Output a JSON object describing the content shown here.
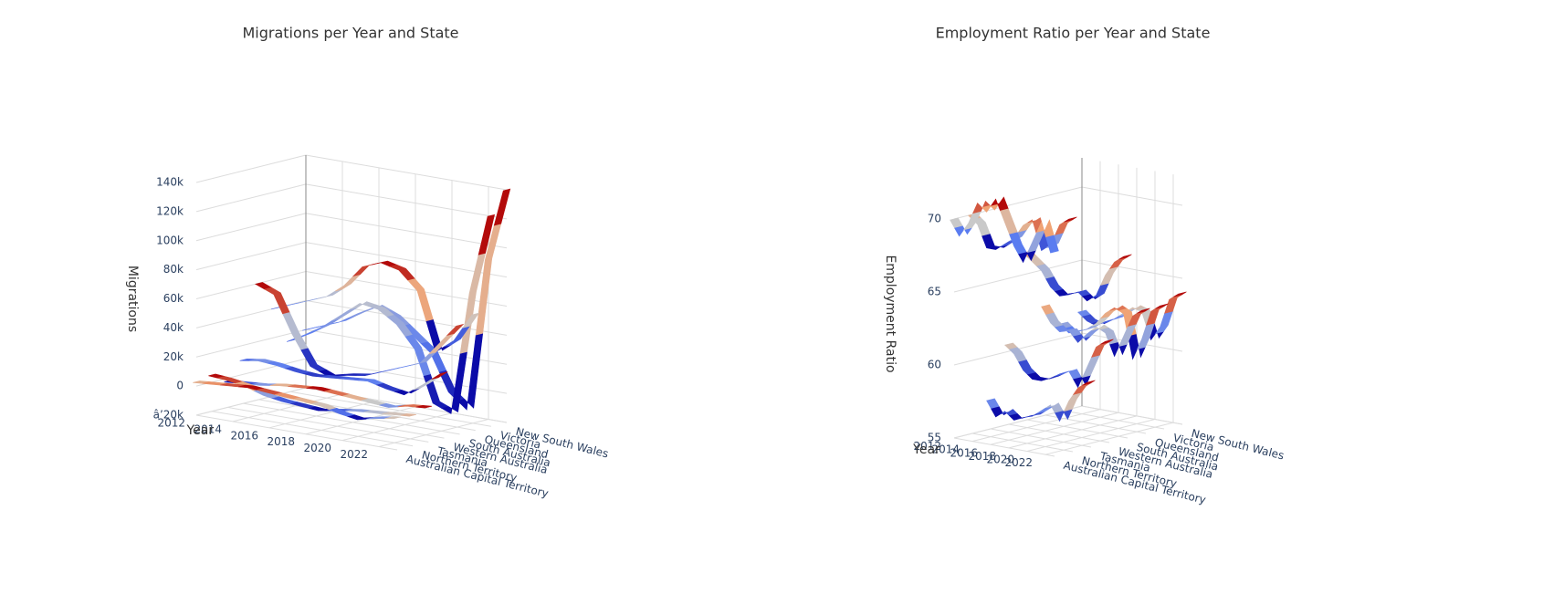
{
  "chart_data": [
    {
      "type": "ribbon3d",
      "title": "Migrations per Year and State",
      "xlabel": "Year",
      "zlabel": "Migrations",
      "colorscale": [
        "#0b0ba8",
        "#5a7cf0",
        "#c9c9c9",
        "#f0a374",
        "#b30a0a"
      ],
      "x": [
        2012,
        2013,
        2014,
        2015,
        2016,
        2017,
        2018,
        2019,
        2020,
        2021,
        2022,
        2023
      ],
      "xlim": [
        2012,
        2023
      ],
      "xticks": [
        2012,
        2014,
        2016,
        2018,
        2020,
        2022
      ],
      "zlim": [
        -20000,
        140000
      ],
      "zticks": [
        {
          "value": -20000,
          "label": "â’20k"
        },
        0,
        {
          "value": 20000,
          "label": "20k"
        },
        {
          "value": 40000,
          "label": "40k"
        },
        {
          "value": 60000,
          "label": "60k"
        },
        {
          "value": 80000,
          "label": "80k"
        },
        {
          "value": 100000,
          "label": "100k"
        },
        {
          "value": 120000,
          "label": "120k"
        },
        {
          "value": 140000,
          "label": "140k"
        }
      ],
      "series": [
        {
          "name": "New South Wales",
          "values": [
            20000,
            25000,
            30000,
            38000,
            45000,
            40000,
            30000,
            20000,
            -5000,
            -15000,
            90000,
            140000
          ]
        },
        {
          "name": "Victoria",
          "values": [
            15000,
            22000,
            30000,
            40000,
            50000,
            48000,
            40000,
            25000,
            -10000,
            -15000,
            70000,
            125000
          ]
        },
        {
          "name": "Queensland",
          "values": [
            40000,
            45000,
            50000,
            55000,
            65000,
            80000,
            85000,
            82000,
            70000,
            30000,
            40000,
            60000
          ]
        },
        {
          "name": "South Australia",
          "values": [
            60000,
            55000,
            30000,
            10000,
            5000,
            8000,
            10000,
            15000,
            20000,
            25000,
            40000,
            55000
          ]
        },
        {
          "name": "Western Australia",
          "values": [
            10000,
            12000,
            11000,
            9000,
            8000,
            9000,
            10000,
            11000,
            8000,
            6000,
            15000,
            25000
          ]
        },
        {
          "name": "Tasmania",
          "values": [
            -2000,
            -1000,
            0,
            2000,
            3000,
            4000,
            3000,
            2000,
            1000,
            0,
            3000,
            4000
          ]
        },
        {
          "name": "Northern Territory",
          "values": [
            5000,
            4000,
            2000,
            -2000,
            -4000,
            -5000,
            -6000,
            -4000,
            -2000,
            -1000,
            0,
            1000
          ]
        },
        {
          "name": "Australian Capital Territory",
          "values": [
            3000,
            4000,
            5000,
            6000,
            5000,
            4000,
            3000,
            2000,
            -1000,
            -3000,
            0,
            2000
          ]
        }
      ]
    },
    {
      "type": "ribbon3d",
      "title": "Employment Ratio per Year and State",
      "xlabel": "Year",
      "zlabel": "Employment Ratio",
      "colorscale": [
        "#0b0ba8",
        "#5a7cf0",
        "#c9c9c9",
        "#f0a374",
        "#b30a0a"
      ],
      "x": [
        2012,
        2013,
        2014,
        2015,
        2016,
        2017,
        2018,
        2019,
        2020,
        2021,
        2022,
        2023
      ],
      "xlim": [
        2012,
        2023
      ],
      "xticks": [
        2012,
        2014,
        2016,
        2018,
        2020,
        2022
      ],
      "zlim": [
        55,
        72
      ],
      "zticks": [
        55,
        60,
        65,
        70
      ],
      "series": [
        {
          "name": "New South Wales",
          "values": [
            61.5,
            61,
            60.8,
            61.2,
            61.5,
            62,
            62.5,
            62.3,
            60.5,
            61.5,
            63.5,
            64
          ]
        },
        {
          "name": "Victoria",
          "values": [
            61,
            60.5,
            60.7,
            61,
            61.5,
            62.3,
            62.8,
            62.5,
            59.5,
            61,
            63,
            63.5
          ]
        },
        {
          "name": "Queensland",
          "values": [
            62.5,
            61.5,
            61,
            61.2,
            60.5,
            61.2,
            61.8,
            61.5,
            60,
            61.5,
            63,
            63.5
          ]
        },
        {
          "name": "South Australia",
          "values": [
            66.5,
            66,
            65.5,
            64.5,
            64,
            64.2,
            64.5,
            64,
            64.5,
            66,
            67,
            67.5
          ]
        },
        {
          "name": "Western Australia",
          "values": [
            60.5,
            60,
            59,
            58.5,
            58.5,
            58.8,
            59.2,
            59.5,
            58.5,
            60,
            61.5,
            62
          ]
        },
        {
          "name": "Tasmania",
          "values": [
            57,
            56,
            56.5,
            56,
            56.3,
            56.5,
            57,
            57.5,
            56.5,
            58,
            59,
            59.5
          ]
        },
        {
          "name": "Northern Territory",
          "values": [
            70,
            69.5,
            68,
            68,
            68.5,
            69,
            70,
            70.5,
            68.5,
            69,
            70.5,
            71
          ]
        },
        {
          "name": "Australian Capital Territory",
          "values": [
            70,
            69,
            70,
            71.5,
            71,
            72,
            70.5,
            69,
            68,
            69.5,
            71,
            69
          ]
        }
      ]
    }
  ]
}
